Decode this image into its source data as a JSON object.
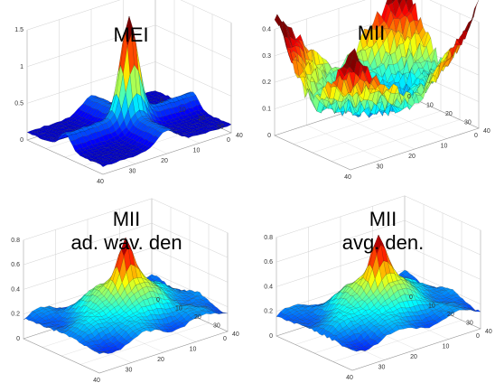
{
  "figure": {
    "panels": [
      {
        "id": "mei",
        "title_lines": [
          "MEI"
        ],
        "z_ticks": [
          "0",
          "0.5",
          "1",
          "1.5"
        ],
        "x_ticks": [
          "40",
          "30",
          "20",
          "10",
          "0"
        ],
        "y_ticks": [
          "0",
          "10",
          "20",
          "30",
          "40"
        ]
      },
      {
        "id": "mii",
        "title_lines": [
          "MII"
        ],
        "z_ticks": [
          "0",
          "0.1",
          "0.2",
          "0.3",
          "0.4"
        ],
        "x_ticks": [
          "40",
          "30",
          "20",
          "10",
          "0"
        ],
        "y_ticks": [
          "0",
          "10",
          "20",
          "30",
          "40"
        ]
      },
      {
        "id": "mii-wav",
        "title_lines": [
          "MII",
          "ad. wav. den"
        ],
        "z_ticks": [
          "0",
          "0.2",
          "0.4",
          "0.6",
          "0.8"
        ],
        "x_ticks": [
          "40",
          "30",
          "20",
          "10",
          "0"
        ],
        "y_ticks": [
          "0",
          "10",
          "20",
          "30",
          "40"
        ]
      },
      {
        "id": "mii-avg",
        "title_lines": [
          "MII",
          "avg. den."
        ],
        "z_ticks": [
          "0",
          "0.2",
          "0.4",
          "0.6",
          "0.8"
        ],
        "x_ticks": [
          "40",
          "30",
          "20",
          "10",
          "0"
        ],
        "y_ticks": [
          "0",
          "10",
          "20",
          "30",
          "40"
        ]
      }
    ]
  },
  "chart_data": [
    {
      "type": "surface",
      "title": "MEI",
      "xlim": [
        0,
        40
      ],
      "ylim": [
        0,
        40
      ],
      "zlim": [
        0,
        1.5
      ],
      "grid": true,
      "colormap": "jet",
      "shape": "sharp central peak with cross-shaped ridges along the axes",
      "peak": {
        "x": 20,
        "y": 20,
        "z": 1.2
      },
      "baseline_z": 0.1
    },
    {
      "type": "surface",
      "title": "MII",
      "xlim": [
        0,
        40
      ],
      "ylim": [
        0,
        40
      ],
      "zlim": [
        0,
        0.4
      ],
      "grid": true,
      "colormap": "jet",
      "shape": "bowl: low noisy center, raised edges and corners",
      "peak": {
        "x": 0,
        "y": 0,
        "z": 0.4
      },
      "baseline_z": 0.1
    },
    {
      "type": "surface",
      "title": "MII ad. wav. den",
      "xlim": [
        0,
        40
      ],
      "ylim": [
        0,
        40
      ],
      "zlim": [
        0,
        0.8
      ],
      "grid": true,
      "colormap": "jet",
      "shape": "central peak on a broad smooth hill",
      "peak": {
        "x": 20,
        "y": 20,
        "z": 0.75
      },
      "baseline_z": 0.15
    },
    {
      "type": "surface",
      "title": "MII avg. den.",
      "xlim": [
        0,
        40
      ],
      "ylim": [
        0,
        40
      ],
      "zlim": [
        0,
        0.8
      ],
      "grid": true,
      "colormap": "jet",
      "shape": "central peak on a broad smooth hill",
      "peak": {
        "x": 20,
        "y": 20,
        "z": 0.75
      },
      "baseline_z": 0.15
    }
  ]
}
